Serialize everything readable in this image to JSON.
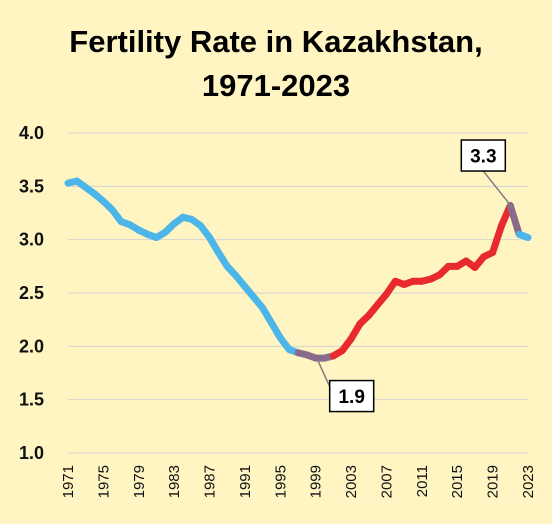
{
  "chart_data": {
    "type": "line",
    "title_line1": "Fertility Rate in Kazakhstan,",
    "title_line2": "1971-2023",
    "xlabel": "",
    "ylabel": "",
    "ylim": [
      1.0,
      4.0
    ],
    "y_ticks": [
      "1.0",
      "1.5",
      "2.0",
      "2.5",
      "3.0",
      "3.5",
      "4.0"
    ],
    "x_tick_labels": [
      "1971",
      "1975",
      "1979",
      "1983",
      "1987",
      "1991",
      "1995",
      "1999",
      "2003",
      "2007",
      "2011",
      "2015",
      "2019",
      "2023"
    ],
    "grid": true,
    "legend": "none",
    "x": [
      1971,
      1972,
      1973,
      1974,
      1975,
      1976,
      1977,
      1978,
      1979,
      1980,
      1981,
      1982,
      1983,
      1984,
      1985,
      1986,
      1987,
      1988,
      1989,
      1990,
      1991,
      1992,
      1993,
      1994,
      1995,
      1996,
      1997,
      1998,
      1999,
      2000,
      2001,
      2002,
      2003,
      2004,
      2005,
      2006,
      2007,
      2008,
      2009,
      2010,
      2011,
      2012,
      2013,
      2014,
      2015,
      2016,
      2017,
      2018,
      2019,
      2020,
      2021,
      2022,
      2023
    ],
    "values": [
      3.53,
      3.55,
      3.49,
      3.43,
      3.36,
      3.28,
      3.17,
      3.14,
      3.09,
      3.05,
      3.02,
      3.07,
      3.15,
      3.21,
      3.19,
      3.13,
      3.02,
      2.88,
      2.75,
      2.66,
      2.56,
      2.46,
      2.36,
      2.22,
      2.08,
      1.97,
      1.94,
      1.92,
      1.89,
      1.89,
      1.91,
      1.96,
      2.07,
      2.21,
      2.29,
      2.39,
      2.49,
      2.61,
      2.58,
      2.61,
      2.61,
      2.63,
      2.67,
      2.75,
      2.75,
      2.8,
      2.74,
      2.84,
      2.88,
      3.13,
      3.32,
      3.05,
      3.02
    ],
    "annotations": [
      {
        "label": "1.9",
        "x": 1999,
        "y": 1.89
      },
      {
        "label": "3.3",
        "x": 2021,
        "y": 3.32
      }
    ],
    "colors": {
      "rising_falling": "#4db6e8",
      "recovery": "#e8292d",
      "transition_low": "#8a6a8a",
      "background": "#fff5c2",
      "grid": "#d4d4d4"
    }
  }
}
